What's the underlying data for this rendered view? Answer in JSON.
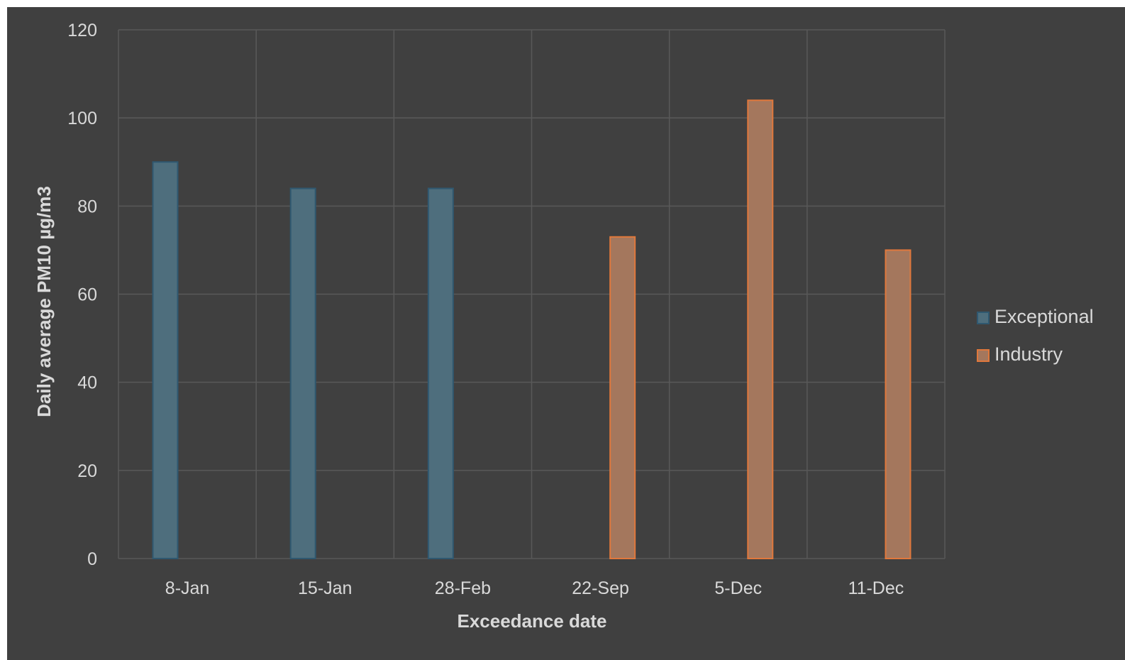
{
  "chart_data": {
    "type": "bar",
    "categories": [
      "8-Jan",
      "15-Jan",
      "28-Feb",
      "22-Sep",
      "5-Dec",
      "11-Dec"
    ],
    "series": [
      {
        "name": "Exceptional",
        "color": "#4e6e7d",
        "edge": "#2f5870",
        "values": [
          90,
          84,
          84,
          null,
          null,
          null
        ]
      },
      {
        "name": "Industry",
        "color": "#a4775d",
        "edge": "#e0783c",
        "values": [
          null,
          null,
          null,
          73,
          104,
          70
        ]
      }
    ],
    "title": "",
    "xlabel": "Exceedance date",
    "ylabel": "Daily average PM10 µg/m3",
    "ylim": [
      0,
      120
    ],
    "yticks": [
      0,
      20,
      40,
      60,
      80,
      100,
      120
    ],
    "grid": true,
    "legend_position": "right"
  }
}
